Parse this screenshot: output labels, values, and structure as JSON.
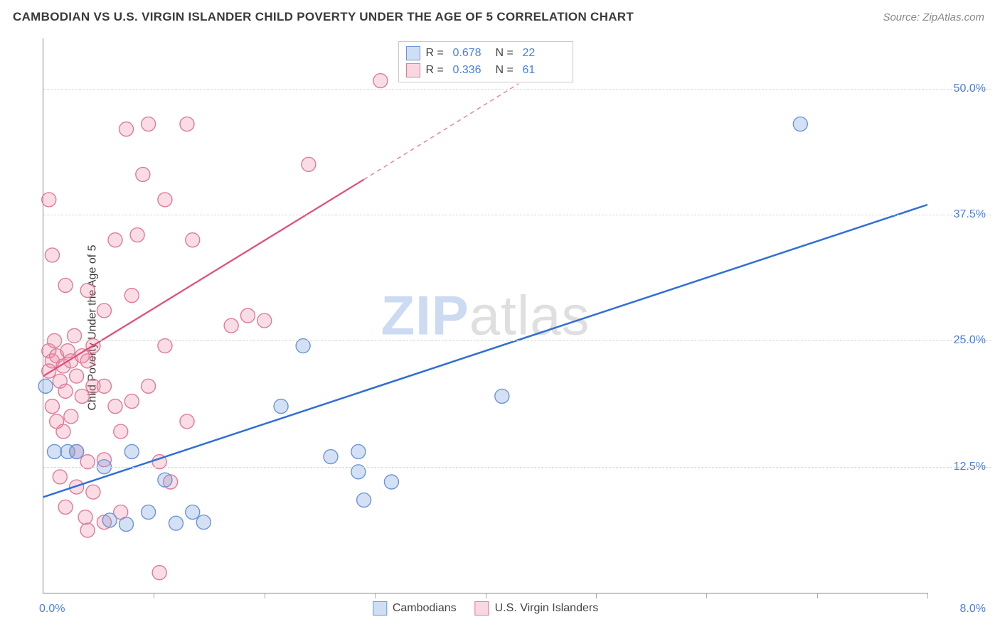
{
  "header": {
    "title": "CAMBODIAN VS U.S. VIRGIN ISLANDER CHILD POVERTY UNDER THE AGE OF 5 CORRELATION CHART",
    "source": "Source: ZipAtlas.com"
  },
  "chart": {
    "type": "scatter",
    "ylabel": "Child Poverty Under the Age of 5",
    "xlim": [
      0.0,
      8.0
    ],
    "ylim": [
      0.0,
      55.0
    ],
    "x_tick_positions": [
      0,
      1,
      2,
      3,
      4,
      5,
      6,
      7,
      8
    ],
    "x_axis_label_left": "0.0%",
    "x_axis_label_right": "8.0%",
    "y_gridlines": [
      12.5,
      25.0,
      37.5,
      50.0
    ],
    "y_labels_right": [
      "12.5%",
      "25.0%",
      "37.5%",
      "50.0%"
    ],
    "background_color": "#ffffff",
    "grid_color": "#d8d8d8",
    "watermark": {
      "part1": "ZIP",
      "part2": "atlas"
    },
    "series": [
      {
        "name": "Cambodians",
        "color_fill": "rgba(120,160,220,0.32)",
        "color_stroke": "#6a95d8",
        "marker_radius": 10,
        "trendline": {
          "x1": 0.0,
          "y1": 9.5,
          "x2": 8.0,
          "y2": 38.5,
          "color": "#2f6fd8",
          "width": 2.5,
          "dash": null
        },
        "points": [
          [
            0.02,
            20.5
          ],
          [
            0.1,
            14.0
          ],
          [
            0.22,
            14.0
          ],
          [
            0.3,
            14.0
          ],
          [
            0.55,
            12.5
          ],
          [
            0.8,
            14.0
          ],
          [
            0.95,
            8.0
          ],
          [
            0.6,
            7.2
          ],
          [
            0.75,
            6.8
          ],
          [
            1.1,
            11.2
          ],
          [
            1.2,
            6.9
          ],
          [
            1.35,
            8.0
          ],
          [
            1.45,
            7.0
          ],
          [
            2.35,
            24.5
          ],
          [
            2.15,
            18.5
          ],
          [
            2.6,
            13.5
          ],
          [
            2.85,
            14.0
          ],
          [
            2.85,
            12.0
          ],
          [
            2.9,
            9.2
          ],
          [
            3.15,
            11.0
          ],
          [
            4.15,
            19.5
          ],
          [
            6.85,
            46.5
          ]
        ]
      },
      {
        "name": "U.S. Virgin Islanders",
        "color_fill": "rgba(235,140,165,0.30)",
        "color_stroke": "#e07a9a",
        "marker_radius": 10,
        "trendline_solid": {
          "x1": 0.0,
          "y1": 21.5,
          "x2": 2.9,
          "y2": 41.0,
          "color": "#e44a78",
          "width": 2.2
        },
        "trendline_dashed": {
          "x1": 2.9,
          "y1": 41.0,
          "x2": 4.3,
          "y2": 50.5,
          "color": "#e88aa6",
          "width": 1.6
        },
        "points": [
          [
            0.05,
            39.0
          ],
          [
            0.08,
            33.5
          ],
          [
            0.2,
            30.5
          ],
          [
            0.05,
            24.0
          ],
          [
            0.08,
            23.0
          ],
          [
            0.12,
            23.5
          ],
          [
            0.18,
            22.5
          ],
          [
            0.22,
            24.0
          ],
          [
            0.25,
            23.0
          ],
          [
            0.05,
            22.0
          ],
          [
            0.1,
            25.0
          ],
          [
            0.15,
            21.0
          ],
          [
            0.2,
            20.0
          ],
          [
            0.3,
            21.5
          ],
          [
            0.35,
            23.5
          ],
          [
            0.4,
            23.0
          ],
          [
            0.45,
            24.5
          ],
          [
            0.28,
            25.5
          ],
          [
            0.4,
            30.0
          ],
          [
            0.55,
            28.0
          ],
          [
            0.65,
            35.0
          ],
          [
            0.08,
            18.5
          ],
          [
            0.12,
            17.0
          ],
          [
            0.18,
            16.0
          ],
          [
            0.25,
            17.5
          ],
          [
            0.35,
            19.5
          ],
          [
            0.45,
            20.5
          ],
          [
            0.55,
            20.5
          ],
          [
            0.65,
            18.5
          ],
          [
            0.7,
            16.0
          ],
          [
            0.8,
            19.0
          ],
          [
            0.3,
            14.0
          ],
          [
            0.4,
            13.0
          ],
          [
            0.55,
            13.2
          ],
          [
            0.15,
            11.5
          ],
          [
            0.3,
            10.5
          ],
          [
            0.45,
            10.0
          ],
          [
            0.2,
            8.5
          ],
          [
            0.38,
            7.5
          ],
          [
            0.55,
            7.0
          ],
          [
            0.7,
            8.0
          ],
          [
            0.4,
            6.2
          ],
          [
            0.75,
            46.0
          ],
          [
            0.95,
            46.5
          ],
          [
            0.9,
            41.5
          ],
          [
            0.85,
            35.5
          ],
          [
            0.8,
            29.5
          ],
          [
            1.1,
            24.5
          ],
          [
            0.95,
            20.5
          ],
          [
            1.3,
            46.5
          ],
          [
            1.1,
            39.0
          ],
          [
            1.35,
            35.0
          ],
          [
            1.7,
            26.5
          ],
          [
            1.85,
            27.5
          ],
          [
            1.3,
            17.0
          ],
          [
            1.05,
            13.0
          ],
          [
            1.15,
            11.0
          ],
          [
            1.05,
            2.0
          ],
          [
            2.0,
            27.0
          ],
          [
            2.4,
            42.5
          ],
          [
            3.05,
            50.8
          ]
        ]
      }
    ],
    "stats_legend": {
      "rows": [
        {
          "swatch": "blue",
          "r_label": "R =",
          "r_value": "0.678",
          "n_label": "N =",
          "n_value": "22"
        },
        {
          "swatch": "pink",
          "r_label": "R =",
          "r_value": "0.336",
          "n_label": "N =",
          "n_value": "61"
        }
      ]
    },
    "bottom_legend": {
      "items": [
        {
          "swatch": "blue",
          "label": "Cambodians"
        },
        {
          "swatch": "pink",
          "label": "U.S. Virgin Islanders"
        }
      ]
    }
  }
}
